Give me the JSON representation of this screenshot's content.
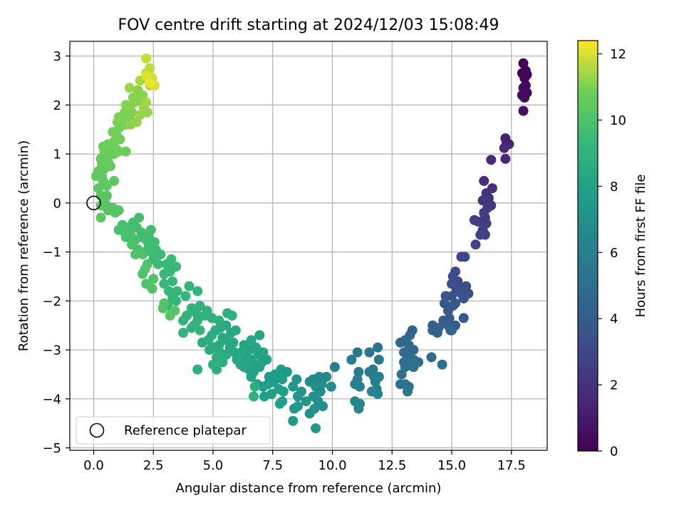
{
  "chart_data": {
    "type": "scatter",
    "title": "FOV centre drift starting at 2024/12/03 15:08:49",
    "xlabel": "Angular distance from reference (arcmin)",
    "ylabel": "Rotation from reference (arcmin)",
    "xlim": [
      -1.0,
      19.0
    ],
    "ylim": [
      -5.05,
      3.3
    ],
    "xticks": [
      "0.0",
      "2.5",
      "5.0",
      "7.5",
      "10.0",
      "12.5",
      "15.0",
      "17.5"
    ],
    "yticks": [
      "−5",
      "−4",
      "−3",
      "−2",
      "−1",
      "0",
      "1",
      "2",
      "3"
    ],
    "grid": true,
    "legend": {
      "placement": "lower-left",
      "entries": [
        "Reference platepar"
      ]
    },
    "colorbar": {
      "label": "Hours from first FF file",
      "range": [
        0,
        12.4
      ],
      "ticks": [
        "0",
        "2",
        "4",
        "6",
        "8",
        "10",
        "12"
      ],
      "colormap": "viridis"
    },
    "reference_point": {
      "x": 0.0,
      "y": 0.0
    },
    "points": [
      [
        18.0,
        2.85,
        0.0
      ],
      [
        18.1,
        2.7,
        0.05
      ],
      [
        17.95,
        2.65,
        0.1
      ],
      [
        18.15,
        2.62,
        0.15
      ],
      [
        18.05,
        2.55,
        0.2
      ],
      [
        18.1,
        2.4,
        0.25
      ],
      [
        18.0,
        2.35,
        0.3
      ],
      [
        18.15,
        2.25,
        0.35
      ],
      [
        17.95,
        2.2,
        0.4
      ],
      [
        18.05,
        2.15,
        0.45
      ],
      [
        18.0,
        1.88,
        0.5
      ],
      [
        17.25,
        1.32,
        1.2
      ],
      [
        17.3,
        1.22,
        1.3
      ],
      [
        17.4,
        1.2,
        1.4
      ],
      [
        17.2,
        1.12,
        1.5
      ],
      [
        17.25,
        0.9,
        1.6
      ],
      [
        16.65,
        0.88,
        1.7
      ],
      [
        16.35,
        0.45,
        1.8
      ],
      [
        16.7,
        0.3,
        1.9
      ],
      [
        16.45,
        0.2,
        2.0
      ],
      [
        16.55,
        0.1,
        2.1
      ],
      [
        16.3,
        0.05,
        2.2
      ],
      [
        16.65,
        -0.05,
        2.3
      ],
      [
        16.5,
        -0.1,
        2.4
      ],
      [
        16.35,
        -0.2,
        2.45
      ],
      [
        16.4,
        -0.3,
        2.5
      ],
      [
        16.1,
        -0.38,
        2.55
      ],
      [
        15.95,
        -0.35,
        2.6
      ],
      [
        16.45,
        -0.42,
        2.65
      ],
      [
        16.3,
        -0.55,
        2.7
      ],
      [
        16.4,
        -0.65,
        2.75
      ],
      [
        16.2,
        -0.65,
        2.8
      ],
      [
        16.0,
        -0.85,
        2.9
      ],
      [
        15.55,
        -1.1,
        3.0
      ],
      [
        15.4,
        -1.1,
        3.05
      ],
      [
        15.15,
        -1.4,
        3.1
      ],
      [
        15.05,
        -1.5,
        3.15
      ],
      [
        15.25,
        -1.6,
        3.2
      ],
      [
        15.3,
        -1.7,
        3.25
      ],
      [
        15.0,
        -1.65,
        3.3
      ],
      [
        15.6,
        -1.7,
        3.35
      ],
      [
        15.2,
        -1.8,
        3.4
      ],
      [
        15.4,
        -1.85,
        3.45
      ],
      [
        15.7,
        -1.85,
        3.5
      ],
      [
        15.0,
        -1.9,
        3.55
      ],
      [
        14.75,
        -1.9,
        3.6
      ],
      [
        15.5,
        -1.95,
        3.65
      ],
      [
        15.15,
        -2.05,
        3.7
      ],
      [
        14.7,
        -2.05,
        3.75
      ],
      [
        15.05,
        -2.1,
        3.8
      ],
      [
        14.85,
        -2.2,
        3.85
      ],
      [
        14.9,
        -2.35,
        3.9
      ],
      [
        15.5,
        -2.35,
        3.95
      ],
      [
        14.65,
        -2.4,
        4.0
      ],
      [
        15.15,
        -2.5,
        4.05
      ],
      [
        14.85,
        -2.5,
        4.1
      ],
      [
        14.2,
        -2.5,
        4.15
      ],
      [
        14.45,
        -2.55,
        4.2
      ],
      [
        14.95,
        -2.6,
        4.25
      ],
      [
        15.0,
        -2.6,
        4.3
      ],
      [
        14.2,
        -2.6,
        4.35
      ],
      [
        14.4,
        -2.65,
        4.4
      ],
      [
        13.35,
        -2.6,
        4.45
      ],
      [
        13.25,
        -2.7,
        4.5
      ],
      [
        13.05,
        -2.8,
        4.55
      ],
      [
        12.85,
        -2.85,
        4.6
      ],
      [
        13.2,
        -2.9,
        4.65
      ],
      [
        13.4,
        -3.0,
        4.7
      ],
      [
        13.0,
        -3.05,
        4.75
      ],
      [
        13.15,
        -3.1,
        4.8
      ],
      [
        14.15,
        -3.15,
        4.85
      ],
      [
        13.4,
        -3.2,
        4.9
      ],
      [
        13.6,
        -3.25,
        4.95
      ],
      [
        13.0,
        -3.25,
        5.0
      ],
      [
        13.3,
        -3.3,
        5.05
      ],
      [
        14.6,
        -3.3,
        5.1
      ],
      [
        13.05,
        -3.35,
        5.15
      ],
      [
        13.4,
        -3.35,
        5.2
      ],
      [
        12.9,
        -3.5,
        5.25
      ],
      [
        12.85,
        -3.7,
        5.3
      ],
      [
        13.05,
        -3.7,
        5.35
      ],
      [
        13.2,
        -3.75,
        5.4
      ],
      [
        13.15,
        -3.85,
        5.45
      ],
      [
        11.9,
        -2.95,
        5.5
      ],
      [
        11.55,
        -3.05,
        5.55
      ],
      [
        11.05,
        -3.05,
        5.6
      ],
      [
        11.95,
        -3.2,
        5.65
      ],
      [
        10.8,
        -3.2,
        5.7
      ],
      [
        11.7,
        -3.4,
        5.75
      ],
      [
        11.55,
        -3.45,
        5.8
      ],
      [
        11.1,
        -3.45,
        5.85
      ],
      [
        10.1,
        -3.35,
        5.9
      ],
      [
        11.75,
        -3.55,
        5.95
      ],
      [
        11.95,
        -3.55,
        6.0
      ],
      [
        11.05,
        -3.6,
        6.05
      ],
      [
        11.8,
        -3.65,
        6.1
      ],
      [
        10.95,
        -3.7,
        6.15
      ],
      [
        11.15,
        -3.75,
        6.2
      ],
      [
        11.85,
        -3.8,
        6.25
      ],
      [
        11.65,
        -3.85,
        6.3
      ],
      [
        11.9,
        -3.9,
        6.35
      ],
      [
        10.95,
        -4.05,
        6.4
      ],
      [
        11.15,
        -4.1,
        6.45
      ],
      [
        11.1,
        -4.2,
        6.5
      ],
      [
        9.75,
        -3.55,
        6.55
      ],
      [
        9.45,
        -3.55,
        6.6
      ],
      [
        9.2,
        -3.6,
        6.65
      ],
      [
        9.05,
        -3.65,
        6.7
      ],
      [
        9.55,
        -3.7,
        6.75
      ],
      [
        9.95,
        -3.75,
        6.8
      ],
      [
        9.3,
        -3.75,
        6.85
      ],
      [
        9.5,
        -3.85,
        6.9
      ],
      [
        9.2,
        -3.95,
        6.95
      ],
      [
        9.4,
        -4.05,
        7.0
      ],
      [
        9.6,
        -4.15,
        7.05
      ],
      [
        9.25,
        -4.2,
        7.1
      ],
      [
        9.05,
        -4.3,
        7.15
      ],
      [
        9.3,
        -4.6,
        7.2
      ],
      [
        8.5,
        -3.6,
        7.25
      ],
      [
        8.35,
        -3.75,
        7.3
      ],
      [
        8.7,
        -3.85,
        7.35
      ],
      [
        8.55,
        -3.95,
        7.4
      ],
      [
        8.9,
        -4.05,
        7.45
      ],
      [
        8.55,
        -4.15,
        7.5
      ],
      [
        8.4,
        -4.2,
        7.55
      ],
      [
        8.35,
        -4.45,
        7.6
      ],
      [
        7.85,
        -3.4,
        7.62
      ],
      [
        8.1,
        -3.45,
        7.64
      ],
      [
        7.6,
        -3.5,
        7.66
      ],
      [
        7.35,
        -3.55,
        7.68
      ],
      [
        7.9,
        -3.6,
        7.7
      ],
      [
        7.55,
        -3.65,
        7.72
      ],
      [
        7.3,
        -3.7,
        7.74
      ],
      [
        7.1,
        -3.75,
        7.76
      ],
      [
        7.75,
        -3.8,
        7.78
      ],
      [
        7.95,
        -3.85,
        7.8
      ],
      [
        7.45,
        -3.9,
        7.82
      ],
      [
        7.15,
        -3.95,
        7.84
      ],
      [
        7.9,
        -4.05,
        7.86
      ],
      [
        7.8,
        -4.1,
        7.88
      ],
      [
        6.85,
        -3.7,
        7.9
      ],
      [
        6.6,
        -3.55,
        7.92
      ],
      [
        6.7,
        -3.45,
        7.94
      ],
      [
        6.5,
        -3.4,
        7.96
      ],
      [
        6.95,
        -3.35,
        7.98
      ],
      [
        6.75,
        -3.3,
        8.0
      ],
      [
        7.05,
        -3.25,
        8.02
      ],
      [
        7.25,
        -3.2,
        8.04
      ],
      [
        6.6,
        -3.2,
        8.06
      ],
      [
        6.4,
        -3.15,
        8.08
      ],
      [
        6.9,
        -3.1,
        8.1
      ],
      [
        7.1,
        -3.05,
        8.12
      ],
      [
        6.55,
        -3.0,
        8.14
      ],
      [
        6.8,
        -2.95,
        8.16
      ],
      [
        6.3,
        -2.9,
        8.18
      ],
      [
        6.95,
        -2.7,
        8.2
      ],
      [
        6.6,
        -2.8,
        8.22
      ],
      [
        6.45,
        -3.25,
        8.24
      ],
      [
        6.3,
        -3.35,
        8.26
      ],
      [
        6.15,
        -3.3,
        8.28
      ],
      [
        6.0,
        -3.2,
        8.3
      ],
      [
        6.2,
        -3.05,
        8.32
      ],
      [
        5.9,
        -3.05,
        8.34
      ],
      [
        5.7,
        -2.95,
        8.36
      ],
      [
        5.85,
        -2.85,
        8.38
      ],
      [
        5.55,
        -2.8,
        8.4
      ],
      [
        5.4,
        -2.75,
        8.42
      ],
      [
        5.75,
        -2.65,
        8.44
      ],
      [
        5.95,
        -2.6,
        8.46
      ],
      [
        5.55,
        -2.5,
        8.48
      ],
      [
        5.3,
        -2.55,
        8.5
      ],
      [
        5.1,
        -2.6,
        8.52
      ],
      [
        4.95,
        -2.7,
        8.54
      ],
      [
        4.8,
        -2.8,
        8.56
      ],
      [
        4.55,
        -2.85,
        8.58
      ],
      [
        5.25,
        -2.9,
        8.6
      ],
      [
        5.05,
        -2.95,
        8.62
      ],
      [
        4.85,
        -3.0,
        8.64
      ],
      [
        5.3,
        -3.05,
        8.66
      ],
      [
        5.55,
        -3.1,
        8.68
      ],
      [
        5.15,
        -3.15,
        8.7
      ],
      [
        5.4,
        -3.25,
        8.72
      ],
      [
        5.0,
        -3.3,
        8.74
      ],
      [
        5.15,
        -3.4,
        8.76
      ],
      [
        4.35,
        -3.4,
        8.78
      ],
      [
        6.7,
        -3.95,
        8.8
      ],
      [
        6.75,
        -3.75,
        8.82
      ],
      [
        5.6,
        -2.25,
        8.84
      ],
      [
        5.8,
        -2.3,
        8.86
      ],
      [
        5.25,
        -2.4,
        8.88
      ],
      [
        4.95,
        -2.35,
        8.9
      ],
      [
        4.65,
        -2.3,
        8.92
      ],
      [
        4.75,
        -2.2,
        8.94
      ],
      [
        4.3,
        -2.25,
        8.96
      ],
      [
        4.45,
        -2.1,
        8.98
      ],
      [
        4.1,
        -2.15,
        9.0
      ],
      [
        3.9,
        -2.3,
        9.02
      ],
      [
        4.35,
        -2.4,
        9.04
      ],
      [
        3.75,
        -2.4,
        9.06
      ],
      [
        4.1,
        -2.55,
        9.08
      ],
      [
        4.45,
        -2.6,
        9.1
      ],
      [
        3.75,
        -2.65,
        9.12
      ],
      [
        4.2,
        -2.5,
        9.14
      ],
      [
        4.35,
        -1.8,
        9.16
      ],
      [
        4.0,
        -1.7,
        9.18
      ],
      [
        3.85,
        -1.9,
        9.2
      ],
      [
        3.45,
        -2.0,
        9.22
      ],
      [
        3.1,
        -2.1,
        9.24
      ],
      [
        3.3,
        -1.95,
        9.26
      ],
      [
        3.5,
        -1.8,
        9.28
      ],
      [
        3.15,
        -1.8,
        9.3
      ],
      [
        2.95,
        -1.65,
        9.32
      ],
      [
        3.3,
        -1.6,
        9.34
      ],
      [
        2.95,
        -1.45,
        9.36
      ],
      [
        3.2,
        -1.4,
        9.38
      ],
      [
        3.45,
        -1.3,
        9.4
      ],
      [
        3.25,
        -1.15,
        9.42
      ],
      [
        3.05,
        -1.25,
        9.44
      ],
      [
        2.7,
        -1.25,
        9.46
      ],
      [
        2.5,
        -1.15,
        9.48
      ],
      [
        2.8,
        -1.05,
        9.5
      ],
      [
        2.6,
        -0.95,
        9.52
      ],
      [
        2.4,
        -1.0,
        9.54
      ],
      [
        2.15,
        -1.0,
        9.56
      ],
      [
        2.3,
        -0.85,
        9.58
      ],
      [
        2.55,
        -0.8,
        9.6
      ],
      [
        2.2,
        -0.75,
        9.62
      ],
      [
        2.05,
        -0.7,
        9.64
      ],
      [
        2.3,
        -0.65,
        9.66
      ],
      [
        2.0,
        -0.6,
        9.68
      ],
      [
        2.4,
        -0.55,
        9.7
      ],
      [
        1.8,
        -0.5,
        9.72
      ],
      [
        1.45,
        -0.5,
        9.74
      ],
      [
        1.65,
        -0.4,
        9.76
      ],
      [
        1.9,
        -0.3,
        9.78
      ],
      [
        1.2,
        -0.45,
        9.8
      ],
      [
        1.05,
        -0.55,
        9.82
      ],
      [
        1.3,
        -0.6,
        9.84
      ],
      [
        1.55,
        -0.65,
        9.86
      ],
      [
        1.35,
        -0.7,
        9.88
      ],
      [
        1.75,
        -0.75,
        9.9
      ],
      [
        1.6,
        -0.85,
        9.92
      ],
      [
        1.85,
        -0.95,
        9.94
      ],
      [
        2.05,
        -1.05,
        9.96
      ],
      [
        1.75,
        -1.05,
        9.98
      ],
      [
        2.25,
        -1.25,
        10.0
      ],
      [
        2.15,
        -1.35,
        10.02
      ],
      [
        2.05,
        -1.45,
        10.04
      ],
      [
        2.5,
        -1.55,
        10.06
      ],
      [
        2.2,
        -1.65,
        10.08
      ],
      [
        2.45,
        -1.75,
        10.1
      ],
      [
        2.95,
        -2.05,
        10.12
      ],
      [
        2.9,
        -2.15,
        10.14
      ],
      [
        3.4,
        -2.2,
        10.16
      ],
      [
        3.2,
        -2.3,
        10.18
      ],
      [
        0.8,
        -0.1,
        10.2
      ],
      [
        1.05,
        -0.15,
        10.22
      ],
      [
        0.9,
        -0.2,
        10.24
      ],
      [
        0.6,
        -0.15,
        10.26
      ],
      [
        0.55,
        -0.05,
        10.28
      ],
      [
        0.3,
        -0.05,
        10.3
      ],
      [
        0.45,
        0.05,
        10.32
      ],
      [
        0.3,
        0.15,
        10.34
      ],
      [
        0.55,
        0.15,
        10.36
      ],
      [
        0.3,
        -0.3,
        10.38
      ],
      [
        0.2,
        0.3,
        10.4
      ],
      [
        0.55,
        0.35,
        10.42
      ],
      [
        0.85,
        0.45,
        10.44
      ],
      [
        0.4,
        0.45,
        10.46
      ],
      [
        0.35,
        0.55,
        10.48
      ],
      [
        0.1,
        0.55,
        10.5
      ],
      [
        0.2,
        0.65,
        10.52
      ],
      [
        0.45,
        0.7,
        10.54
      ],
      [
        0.7,
        0.75,
        10.56
      ],
      [
        0.35,
        0.8,
        10.58
      ],
      [
        0.6,
        0.85,
        10.6
      ],
      [
        0.3,
        0.9,
        10.62
      ],
      [
        0.55,
        0.95,
        10.64
      ],
      [
        0.85,
        1.0,
        10.66
      ],
      [
        0.45,
        1.05,
        10.68
      ],
      [
        0.7,
        1.05,
        10.7
      ],
      [
        1.05,
        1.05,
        10.72
      ],
      [
        1.35,
        1.05,
        10.74
      ],
      [
        0.95,
        1.1,
        10.76
      ],
      [
        0.4,
        1.15,
        10.78
      ],
      [
        0.6,
        1.2,
        10.8
      ],
      [
        0.85,
        1.25,
        10.82
      ],
      [
        1.1,
        1.3,
        10.84
      ],
      [
        0.95,
        1.4,
        10.86
      ],
      [
        0.8,
        1.45,
        10.88
      ],
      [
        1.1,
        1.55,
        10.9
      ],
      [
        1.35,
        1.6,
        10.92
      ],
      [
        1.0,
        1.65,
        10.94
      ],
      [
        1.25,
        1.7,
        10.96
      ],
      [
        1.5,
        1.75,
        10.98
      ],
      [
        1.05,
        1.75,
        11.0
      ],
      [
        1.3,
        1.85,
        11.02
      ],
      [
        1.6,
        1.85,
        11.04
      ],
      [
        1.5,
        1.95,
        11.06
      ],
      [
        1.35,
        2.0,
        11.08
      ],
      [
        1.7,
        2.05,
        11.1
      ],
      [
        1.9,
        2.1,
        11.12
      ],
      [
        1.65,
        2.15,
        11.14
      ],
      [
        2.05,
        2.2,
        11.16
      ],
      [
        1.85,
        2.3,
        11.18
      ],
      [
        1.55,
        1.6,
        11.2
      ],
      [
        1.8,
        1.65,
        11.22
      ],
      [
        1.95,
        1.8,
        11.24
      ],
      [
        2.15,
        1.85,
        11.26
      ],
      [
        2.25,
        1.85,
        11.28
      ],
      [
        2.1,
        1.95,
        11.3
      ],
      [
        1.5,
        2.35,
        11.35
      ],
      [
        2.2,
        2.05,
        11.4
      ],
      [
        2.35,
        2.4,
        11.45
      ],
      [
        1.95,
        2.5,
        11.5
      ],
      [
        2.3,
        2.55,
        11.55
      ],
      [
        2.2,
        2.65,
        11.6
      ],
      [
        2.35,
        2.75,
        11.7
      ],
      [
        2.2,
        2.95,
        11.8
      ],
      [
        2.45,
        2.55,
        11.9
      ],
      [
        2.55,
        2.4,
        12.0
      ],
      [
        2.2,
        2.6,
        12.1
      ],
      [
        2.35,
        2.45,
        12.2
      ]
    ]
  }
}
